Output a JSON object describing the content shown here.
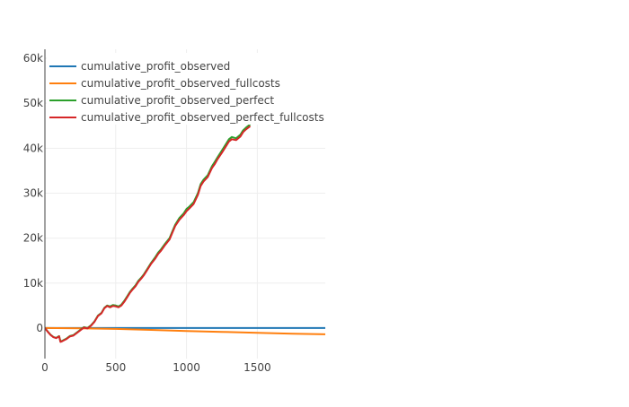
{
  "chart_data": {
    "type": "line",
    "title": "",
    "xlabel": "",
    "ylabel": "",
    "xlim": [
      0,
      1980
    ],
    "ylim": [
      -6800,
      62000
    ],
    "x_ticks": [
      0,
      500,
      1000,
      1500
    ],
    "x_tick_labels": [
      "0",
      "500",
      "1000",
      "1500"
    ],
    "y_ticks": [
      0,
      10000,
      20000,
      30000,
      40000,
      50000,
      60000
    ],
    "y_tick_labels": [
      "0",
      "10k",
      "20k",
      "30k",
      "40k",
      "50k",
      "60k"
    ],
    "grid": true,
    "legend_position": "top-left",
    "series": [
      {
        "name": "cumulative_profit_observed",
        "color": "#1f77b4",
        "x": [
          0,
          500,
          1000,
          1500,
          1980
        ],
        "y": [
          0,
          0,
          0,
          0,
          0
        ]
      },
      {
        "name": "cumulative_profit_observed_fullcosts",
        "color": "#ff7f0e",
        "x": [
          0,
          250,
          500,
          750,
          1000,
          1250,
          1500,
          1750,
          1980
        ],
        "y": [
          0,
          -50,
          -200,
          -420,
          -650,
          -850,
          -1050,
          -1250,
          -1400
        ]
      },
      {
        "name": "cumulative_profit_observed_perfect",
        "color": "#2ca02c",
        "x": [
          0,
          20,
          40,
          60,
          80,
          100,
          110,
          125,
          150,
          175,
          200,
          225,
          250,
          275,
          300,
          325,
          350,
          375,
          400,
          420,
          440,
          460,
          480,
          500,
          520,
          540,
          560,
          580,
          600,
          620,
          640,
          660,
          680,
          700,
          720,
          750,
          780,
          800,
          820,
          850,
          880,
          900,
          920,
          950,
          980,
          1000,
          1020,
          1050,
          1080,
          1100,
          1120,
          1150,
          1180,
          1200,
          1220,
          1250,
          1280,
          1300,
          1320,
          1350,
          1380,
          1400,
          1420,
          1450
        ],
        "y": [
          0,
          -800,
          -1500,
          -2000,
          -2200,
          -1800,
          -3000,
          -2800,
          -2400,
          -1800,
          -1600,
          -1000,
          -400,
          200,
          0,
          600,
          1500,
          2800,
          3400,
          4500,
          5000,
          4800,
          5100,
          5000,
          4800,
          5200,
          6000,
          7000,
          8000,
          8800,
          9500,
          10500,
          11200,
          12000,
          13000,
          14500,
          15800,
          16800,
          17500,
          18800,
          20000,
          21500,
          23000,
          24500,
          25500,
          26500,
          27000,
          28000,
          30000,
          32000,
          33000,
          34000,
          36000,
          37000,
          38000,
          39500,
          41000,
          42000,
          42500,
          42200,
          43000,
          44000,
          44600,
          45300
        ]
      },
      {
        "name": "cumulative_profit_observed_perfect_fullcosts",
        "color": "#d62728",
        "x": [
          0,
          20,
          40,
          60,
          80,
          100,
          110,
          125,
          150,
          175,
          200,
          225,
          250,
          275,
          300,
          325,
          350,
          375,
          400,
          420,
          440,
          460,
          480,
          500,
          520,
          540,
          560,
          580,
          600,
          620,
          640,
          660,
          680,
          700,
          720,
          750,
          780,
          800,
          820,
          850,
          880,
          900,
          920,
          950,
          980,
          1000,
          1020,
          1050,
          1080,
          1100,
          1120,
          1150,
          1180,
          1200,
          1220,
          1250,
          1280,
          1300,
          1320,
          1350,
          1380,
          1400,
          1420,
          1450
        ],
        "y": [
          0,
          -850,
          -1550,
          -2050,
          -2250,
          -1850,
          -3100,
          -2900,
          -2500,
          -1900,
          -1700,
          -1100,
          -500,
          100,
          -100,
          500,
          1400,
          2700,
          3300,
          4400,
          4900,
          4600,
          4900,
          4800,
          4600,
          5000,
          5800,
          6800,
          7800,
          8600,
          9300,
          10300,
          11000,
          11800,
          12800,
          14300,
          15500,
          16500,
          17200,
          18500,
          19700,
          21200,
          22700,
          24100,
          25100,
          26000,
          26600,
          27600,
          29600,
          31600,
          32600,
          33600,
          35600,
          36500,
          37600,
          39000,
          40500,
          41500,
          42000,
          41800,
          42600,
          43600,
          44200,
          44900
        ]
      }
    ]
  }
}
